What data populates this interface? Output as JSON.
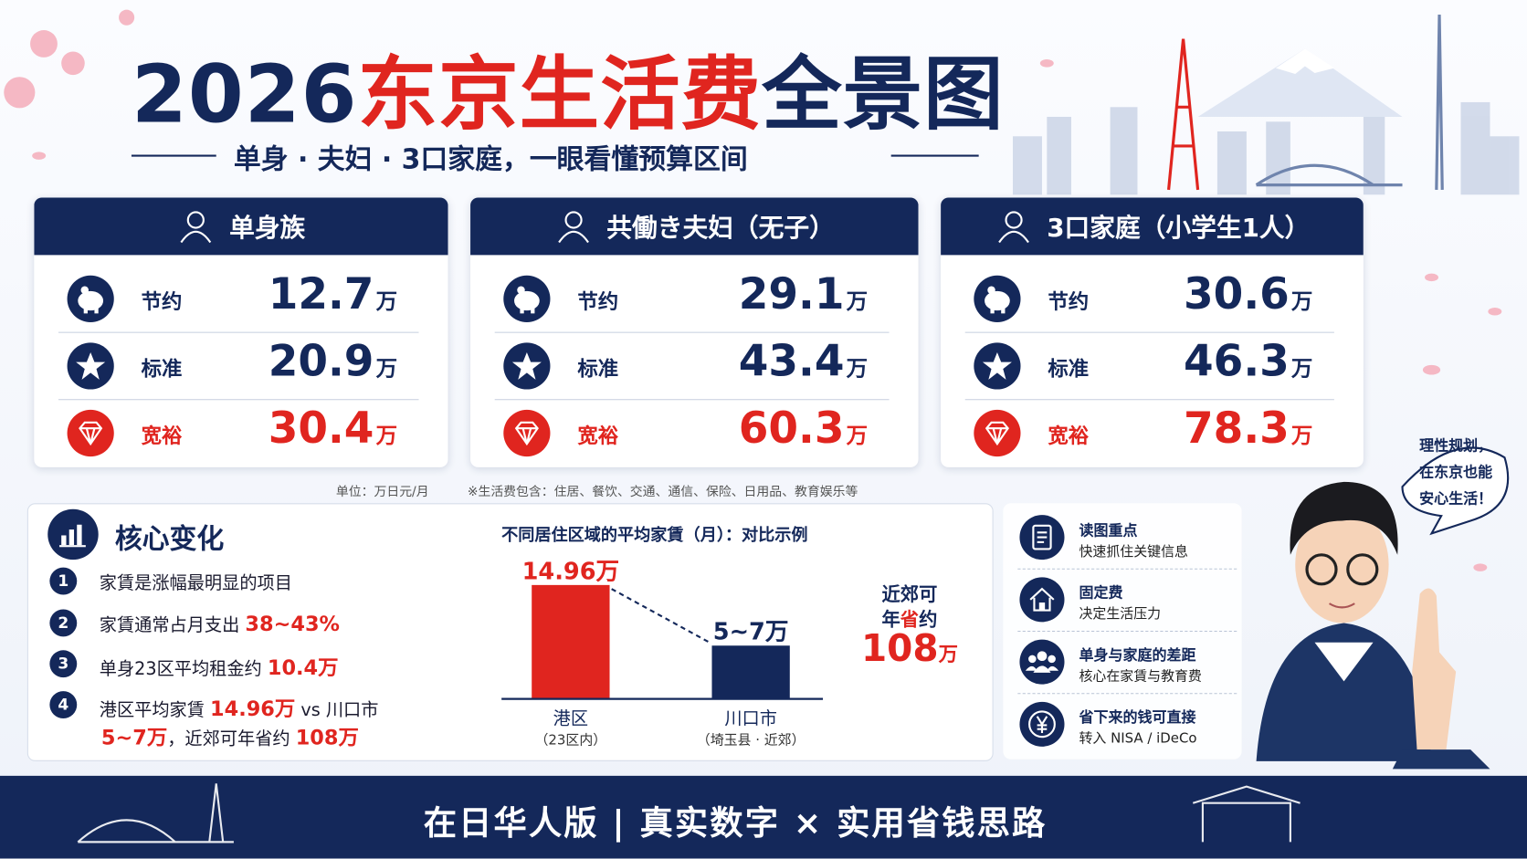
{
  "header": {
    "title_year": "2026",
    "title_red": "东京生活费",
    "title_rest": "全景图",
    "subtitle": "单身 · 夫妇 · 3口家庭，一眼看懂预算区间"
  },
  "cards": [
    {
      "title": "单身族",
      "rows": [
        {
          "label": "节约",
          "amount": 12.7,
          "unit": "万"
        },
        {
          "label": "标准",
          "amount": 20.9,
          "unit": "万"
        },
        {
          "label": "宽裕",
          "amount": 30.4,
          "unit": "万"
        }
      ]
    },
    {
      "title": "共働き夫妇（无子）",
      "rows": [
        {
          "label": "节约",
          "amount": 29.1,
          "unit": "万"
        },
        {
          "label": "标准",
          "amount": 43.4,
          "unit": "万"
        },
        {
          "label": "宽裕",
          "amount": 60.3,
          "unit": "万"
        }
      ]
    },
    {
      "title": "3口家庭（小学生1人）",
      "rows": [
        {
          "label": "节约",
          "amount": 30.6,
          "unit": "万"
        },
        {
          "label": "标准",
          "amount": 46.3,
          "unit": "万"
        },
        {
          "label": "宽裕",
          "amount": 78.3,
          "unit": "万"
        }
      ]
    }
  ],
  "note_unit": "单位：万日元/月",
  "note_scope": "※生活费包含：住居、餐饮、交通、通信、保险、日用品、教育娱乐等",
  "key_changes": {
    "title": "核心变化",
    "items": [
      {
        "num": 1,
        "lines": [
          [
            {
              "text": "家賃是涨幅最明显的项目"
            }
          ]
        ]
      },
      {
        "num": 2,
        "lines": [
          [
            {
              "text": "家賃通常占月支出 "
            },
            {
              "text": "38~43%",
              "em": true
            }
          ]
        ]
      },
      {
        "num": 3,
        "lines": [
          [
            {
              "text": "单身23区平均租金约 "
            },
            {
              "text": "10.4万",
              "em": true
            }
          ]
        ]
      },
      {
        "num": 4,
        "lines": [
          [
            {
              "text": "港区平均家賃 "
            },
            {
              "text": "14.96万",
              "em": true
            },
            {
              "text": " vs 川口市"
            }
          ],
          [
            {
              "text": "5~7万",
              "em": true
            },
            {
              "text": "，近郊可年省约 "
            },
            {
              "text": "108万",
              "em": true
            }
          ]
        ]
      }
    ]
  },
  "rent_chart": {
    "title": "不同居住区域的平均家賃（月）：对比示例",
    "bars": [
      {
        "name": "港区",
        "sub": "（23区内）",
        "value": 14.96,
        "value_label": "14.96万",
        "color": "#e0251f"
      },
      {
        "name": "川口市",
        "sub": "（埼玉县 · 近郊）",
        "low": 5,
        "high": 7,
        "value_label": "5~7万",
        "color": "#14285a"
      }
    ],
    "callout": {
      "lines": [
        [
          {
            "text": "近郊可"
          }
        ],
        [
          {
            "text": "年"
          },
          {
            "text": "省",
            "em": true
          },
          {
            "text": "约"
          }
        ]
      ],
      "amount": 108,
      "unit": "万"
    }
  },
  "tips": [
    {
      "title": "读图重点",
      "desc": "快速抓住关键信息"
    },
    {
      "title": "固定费",
      "desc": "决定生活压力"
    },
    {
      "title": "单身与家庭的差距",
      "desc": "核心在家賃与教育费"
    },
    {
      "title": "省下来的钱可直接",
      "desc": "转入 NISA / iDeCo"
    }
  ],
  "speech": [
    "理性规划，",
    "在东京也能",
    "安心生活！"
  ],
  "footer": "在日华人版 | 真实数字 × 实用省钱思路"
}
